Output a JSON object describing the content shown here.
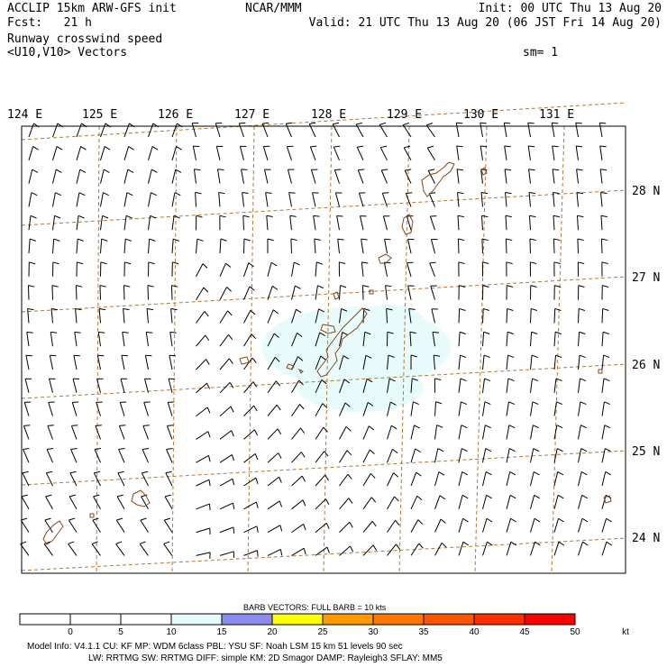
{
  "header": {
    "left_line1": "ACCLIP 15km ARW-GFS init",
    "left_line2": "Fcst:   21 h",
    "left_line3": "Runway crosswind speed",
    "left_line4": "<U10,V10> Vectors",
    "center": "NCAR/MMM",
    "right_line1": "Init: 00 UTC Thu 13 Aug 20",
    "right_line2": "Valid: 21 UTC Thu 13 Aug 20 (06 JST Fri 14 Aug 20)",
    "smoothing": "sm= 1"
  },
  "map": {
    "lon_labels": [
      "124 E",
      "125 E",
      "126 E",
      "127 E",
      "128 E",
      "129 E",
      "130 E",
      "131 E"
    ],
    "lat_labels": [
      "28 N",
      "27 N",
      "26 N",
      "25 N",
      "24 N"
    ],
    "grid_color": "#b8772e",
    "coast_color": "#8b4513",
    "barb_color": "#000000"
  },
  "legend": {
    "title": "BARB VECTORS:  FULL BARB = 10 kts",
    "ticks": [
      "0",
      "5",
      "10",
      "15",
      "20",
      "25",
      "30",
      "35",
      "40",
      "45",
      "50"
    ],
    "unit": "kt",
    "colors": [
      "#ffffff",
      "#ffffff",
      "#ffffff",
      "#e6fafa",
      "#8c8cf0",
      "#ffff00",
      "#ff9900",
      "#ff7700",
      "#ff5500",
      "#ff2d00",
      "#ff0000"
    ]
  },
  "footer": {
    "line1": "Model Info: V4.1.1    CU: KF      MP: WDM 6class  PBL: YSU       SF: Noah LSM     15 km    51 levels    90 sec",
    "line2": "LW: RRTMG    SW: RRTMG   DIFF: simple KM: 2D Smagor DAMP: Rayleigh3  SFLAY: MM5"
  }
}
